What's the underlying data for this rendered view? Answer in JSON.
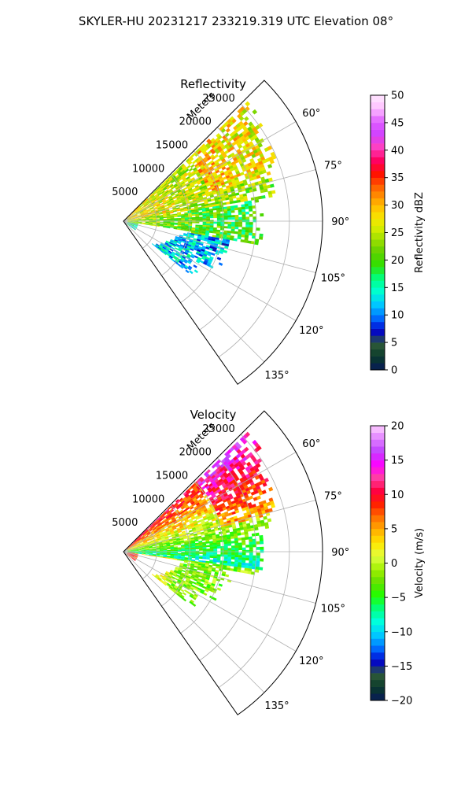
{
  "suptitle": "SKYLER-HU  20231217  233219.319 UTC Elevation 08°",
  "chart_data": [
    {
      "type": "heatmap",
      "title": "Reflectivity",
      "radial_label": "Meters",
      "radial_ticks": [
        5000,
        10000,
        15000,
        20000,
        25000
      ],
      "radial_tick_labels": [
        "5000",
        "10000",
        "15000",
        "20000",
        "25000"
      ],
      "radial_range": [
        0,
        30000
      ],
      "azimuth_range_deg": [
        45,
        145
      ],
      "azimuth_ticks_deg": [
        60,
        75,
        90,
        105,
        120,
        135
      ],
      "azimuth_tick_labels": [
        "60°",
        "75°",
        "90°",
        "105°",
        "120°",
        "135°"
      ],
      "grid": true,
      "colorbar": {
        "label": "Reflectivity dBZ",
        "range": [
          0,
          50
        ],
        "ticks": [
          0,
          5,
          10,
          15,
          20,
          25,
          30,
          35,
          40,
          45,
          50
        ],
        "tick_labels": [
          "0",
          "5",
          "10",
          "15",
          "20",
          "25",
          "30",
          "35",
          "40",
          "45",
          "50"
        ],
        "stops": [
          "#071a5a",
          "#0a3a2a",
          "#2e5a3a",
          "#0000d0",
          "#0070ff",
          "#00c8ff",
          "#00ffd0",
          "#00ff80",
          "#30e000",
          "#60d000",
          "#a0e000",
          "#e0f000",
          "#ffd800",
          "#ffa000",
          "#ff6000",
          "#ff1000",
          "#ff0060",
          "#ff40c0",
          "#d040ff",
          "#e060ff",
          "#ffc0ff",
          "#ffe8ff"
        ]
      }
    },
    {
      "type": "heatmap",
      "title": "Velocity",
      "radial_label": "Meters",
      "radial_ticks": [
        5000,
        10000,
        15000,
        20000,
        25000
      ],
      "radial_tick_labels": [
        "5000",
        "10000",
        "15000",
        "20000",
        "25000"
      ],
      "radial_range": [
        0,
        30000
      ],
      "azimuth_range_deg": [
        45,
        145
      ],
      "azimuth_ticks_deg": [
        60,
        75,
        90,
        105,
        120,
        135
      ],
      "azimuth_tick_labels": [
        "60°",
        "75°",
        "90°",
        "105°",
        "120°",
        "135°"
      ],
      "grid": true,
      "colorbar": {
        "label": "Velocity (m/s)",
        "range": [
          -20,
          20
        ],
        "ticks": [
          -20,
          -15,
          -10,
          -5,
          0,
          5,
          10,
          15,
          20
        ],
        "tick_labels": [
          "−20",
          "−15",
          "−10",
          "−5",
          "0",
          "5",
          "10",
          "15",
          "20"
        ],
        "stops": [
          "#071a5a",
          "#0a3a2a",
          "#2e5a3a",
          "#0000d0",
          "#0070ff",
          "#00c8ff",
          "#00ffe0",
          "#00ff80",
          "#20ff00",
          "#60e000",
          "#a0f000",
          "#e0ff40",
          "#ffe800",
          "#ffb000",
          "#ff7000",
          "#ff2000",
          "#ff0040",
          "#ff40a0",
          "#ff00ff",
          "#c040ff",
          "#e080ff",
          "#ffd0ff"
        ]
      }
    }
  ]
}
